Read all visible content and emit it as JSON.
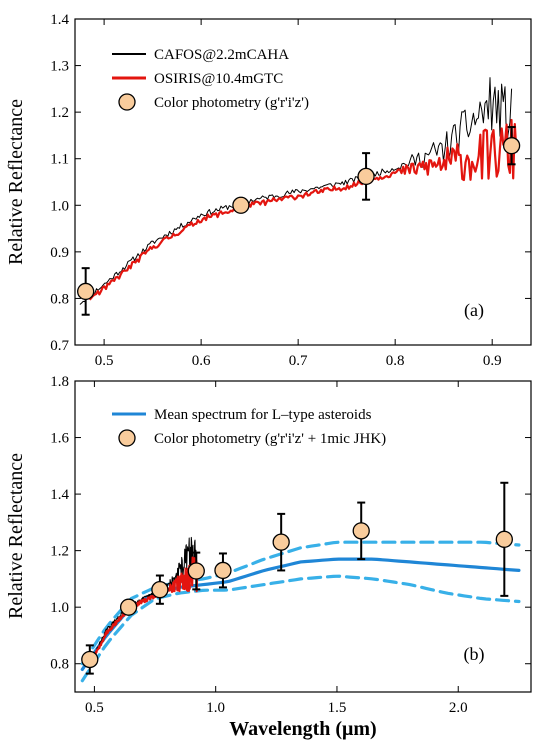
{
  "chart_data": [
    {
      "panel_label": "(a)",
      "type": "line",
      "xlabel": "",
      "ylabel": "Relative Reflectance",
      "xlim": [
        0.47,
        0.94
      ],
      "ylim": [
        0.7,
        1.4
      ],
      "x_ticks": [
        0.5,
        0.6,
        0.7,
        0.8,
        0.9
      ],
      "x_tick_labels": [
        "0.5",
        "0.6",
        "0.7",
        "0.8",
        "0.9"
      ],
      "y_ticks": [
        0.7,
        0.8,
        0.9,
        1.0,
        1.1,
        1.2,
        1.3,
        1.4
      ],
      "y_tick_labels": [
        "0.7",
        "0.8",
        "0.9",
        "1.0",
        "1.1",
        "1.2",
        "1.3",
        "1.4"
      ],
      "legend_position": "top-left",
      "series": [
        {
          "name": "CAFOS@2.2mCAHA",
          "kind": "spectrum",
          "color": "#000000",
          "noisy": true,
          "x": [
            0.475,
            0.5,
            0.55,
            0.6,
            0.65,
            0.7,
            0.75,
            0.8,
            0.85,
            0.88,
            0.9,
            0.92
          ],
          "y": [
            0.79,
            0.83,
            0.92,
            0.98,
            1.01,
            1.03,
            1.05,
            1.08,
            1.12,
            1.18,
            1.22,
            1.18
          ]
        },
        {
          "name": "OSIRIS@10.4mGTC",
          "kind": "spectrum",
          "color": "#e3150f",
          "noisy": true,
          "x": [
            0.485,
            0.5,
            0.55,
            0.6,
            0.65,
            0.7,
            0.75,
            0.8,
            0.85,
            0.88,
            0.9,
            0.925
          ],
          "y": [
            0.8,
            0.82,
            0.91,
            0.97,
            1.0,
            1.02,
            1.04,
            1.07,
            1.09,
            1.1,
            1.11,
            1.12
          ]
        },
        {
          "name": "Color photometry (g'r'i'z')",
          "kind": "points",
          "color": "#f9cc9c",
          "x": [
            0.481,
            0.641,
            0.77,
            0.92
          ],
          "y": [
            0.815,
            1.0,
            1.062,
            1.128
          ],
          "err": [
            0.05,
            0.0,
            0.05,
            0.04
          ]
        }
      ]
    },
    {
      "panel_label": "(b)",
      "type": "line",
      "xlabel": "Wavelength (μm)",
      "ylabel": "Relative Reflectance",
      "xlim": [
        0.42,
        2.3
      ],
      "ylim": [
        0.7,
        1.8
      ],
      "x_ticks": [
        0.5,
        1.0,
        1.5,
        2.0
      ],
      "x_tick_labels": [
        "0.5",
        "1.0",
        "1.5",
        "2.0"
      ],
      "y_ticks": [
        0.8,
        1.0,
        1.2,
        1.4,
        1.6,
        1.8
      ],
      "y_tick_labels": [
        "0.8",
        "1.0",
        "1.2",
        "1.4",
        "1.6",
        "1.8"
      ],
      "legend_position": "top-left",
      "series": [
        {
          "name": "Mean spectrum for L–type asteroids",
          "kind": "mean",
          "color": "#1f86d6",
          "x": [
            0.45,
            0.55,
            0.65,
            0.75,
            0.85,
            0.95,
            1.05,
            1.2,
            1.35,
            1.5,
            1.65,
            1.8,
            1.95,
            2.1,
            2.25
          ],
          "y": [
            0.78,
            0.9,
            1.0,
            1.05,
            1.07,
            1.08,
            1.09,
            1.13,
            1.16,
            1.17,
            1.17,
            1.16,
            1.15,
            1.14,
            1.13
          ]
        },
        {
          "name": "",
          "kind": "bound",
          "color": "#38b0e8",
          "x": [
            0.45,
            0.55,
            0.65,
            0.75,
            0.85,
            0.95,
            1.05,
            1.2,
            1.35,
            1.5,
            1.65,
            1.8,
            1.95,
            2.1,
            2.25
          ],
          "y": [
            0.8,
            0.93,
            1.03,
            1.07,
            1.09,
            1.1,
            1.12,
            1.17,
            1.21,
            1.23,
            1.23,
            1.23,
            1.23,
            1.23,
            1.22
          ]
        },
        {
          "name": "",
          "kind": "bound",
          "color": "#38b0e8",
          "x": [
            0.45,
            0.55,
            0.65,
            0.75,
            0.85,
            0.95,
            1.05,
            1.2,
            1.35,
            1.5,
            1.65,
            1.8,
            1.95,
            2.1,
            2.25
          ],
          "y": [
            0.74,
            0.87,
            0.97,
            1.03,
            1.05,
            1.06,
            1.06,
            1.08,
            1.1,
            1.11,
            1.1,
            1.08,
            1.05,
            1.03,
            1.02
          ]
        },
        {
          "name": "",
          "kind": "spectrum",
          "color": "#000000",
          "noisy": true,
          "x": [
            0.475,
            0.55,
            0.65,
            0.75,
            0.82,
            0.86,
            0.88,
            0.9,
            0.92
          ],
          "y": [
            0.79,
            0.92,
            1.01,
            1.05,
            1.09,
            1.14,
            1.18,
            1.2,
            1.16
          ]
        },
        {
          "name": "",
          "kind": "spectrum",
          "color": "#e3150f",
          "noisy": true,
          "x": [
            0.485,
            0.55,
            0.65,
            0.75,
            0.82,
            0.86,
            0.9,
            0.925
          ],
          "y": [
            0.8,
            0.91,
            1.0,
            1.04,
            1.07,
            1.09,
            1.11,
            1.12
          ]
        },
        {
          "name": "Color photometry (g'r'i'z' + 1mic JHK)",
          "kind": "points",
          "color": "#f9cc9c",
          "x": [
            0.481,
            0.641,
            0.77,
            0.92,
            1.03,
            1.27,
            1.6,
            2.19
          ],
          "y": [
            0.815,
            1.0,
            1.062,
            1.128,
            1.13,
            1.23,
            1.27,
            1.24
          ],
          "err": [
            0.05,
            0.0,
            0.05,
            0.065,
            0.06,
            0.1,
            0.1,
            0.2
          ]
        }
      ]
    }
  ]
}
